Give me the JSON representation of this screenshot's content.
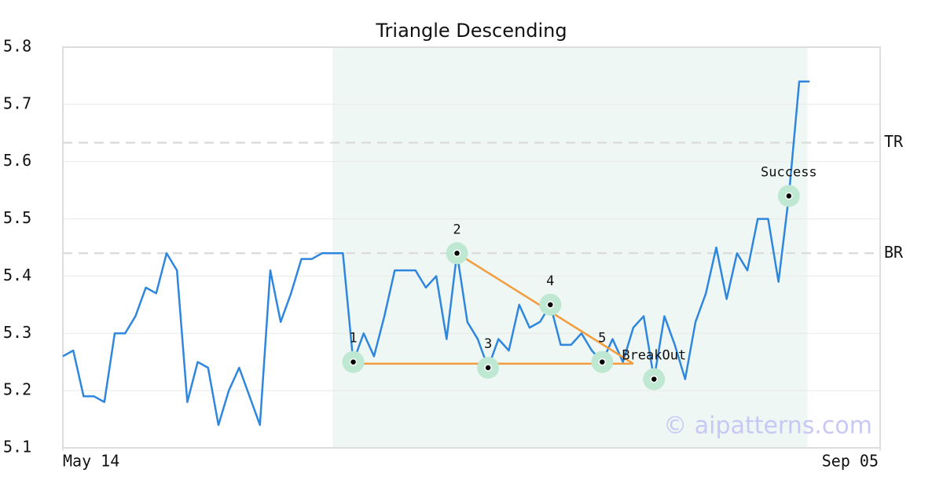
{
  "chart_data": {
    "type": "line",
    "title": "Triangle Descending",
    "color": "#2e86de",
    "x": [
      0,
      1,
      2,
      3,
      4,
      5,
      6,
      7,
      8,
      9,
      10,
      11,
      12,
      13,
      14,
      15,
      16,
      17,
      18,
      19,
      20,
      21,
      22,
      23,
      24,
      25,
      26,
      27,
      28,
      29,
      30,
      31,
      32,
      33,
      34,
      35,
      36,
      37,
      38,
      39,
      40,
      41,
      42,
      43,
      44,
      45,
      46,
      47,
      48,
      49,
      50,
      51,
      52,
      53,
      54,
      55,
      56,
      57,
      58,
      59,
      60,
      61,
      62,
      63,
      64,
      65,
      66,
      67,
      68,
      69,
      70,
      71,
      72
    ],
    "values": [
      5.26,
      5.27,
      5.19,
      5.19,
      5.18,
      5.3,
      5.3,
      5.33,
      5.38,
      5.37,
      5.44,
      5.41,
      5.18,
      5.25,
      5.24,
      5.14,
      5.2,
      5.24,
      5.19,
      5.14,
      5.41,
      5.32,
      5.37,
      5.43,
      5.43,
      5.44,
      5.44,
      5.44,
      5.25,
      5.3,
      5.26,
      5.33,
      5.41,
      5.41,
      5.41,
      5.38,
      5.4,
      5.29,
      5.44,
      5.32,
      5.29,
      5.24,
      5.29,
      5.27,
      5.35,
      5.31,
      5.32,
      5.35,
      5.28,
      5.28,
      5.3,
      5.27,
      5.25,
      5.29,
      5.25,
      5.31,
      5.33,
      5.22,
      5.33,
      5.28,
      5.22,
      5.32,
      5.37,
      5.45,
      5.36,
      5.44,
      5.41,
      5.5,
      5.5,
      5.39,
      5.54,
      5.74,
      5.74
    ],
    "xlim": [
      0,
      78.8
    ],
    "xticks": [
      {
        "value": 0,
        "label": "May 14"
      },
      {
        "value": 78.8,
        "label": "Sep 05"
      }
    ],
    "ylim": [
      5.1,
      5.8
    ],
    "yticks": [
      5.1,
      5.2,
      5.3,
      5.4,
      5.5,
      5.6,
      5.7,
      5.8
    ],
    "grid": true,
    "highlight": [
      26,
      71.8
    ],
    "reference_lines": [
      {
        "label": "TR",
        "value": 5.633
      },
      {
        "label": "BR",
        "value": 5.44
      }
    ],
    "trendlines": [
      {
        "color": "#f39c3d",
        "x": [
          28,
          55
        ],
        "y": [
          5.247,
          5.247
        ]
      },
      {
        "color": "#f39c3d",
        "x": [
          38,
          55
        ],
        "y": [
          5.44,
          5.247
        ]
      }
    ],
    "annotations": [
      {
        "label": "1",
        "x": 28,
        "y": 5.25
      },
      {
        "label": "2",
        "x": 38,
        "y": 5.44
      },
      {
        "label": "3",
        "x": 41,
        "y": 5.24
      },
      {
        "label": "4",
        "x": 47,
        "y": 5.35
      },
      {
        "label": "5",
        "x": 52,
        "y": 5.25
      },
      {
        "label": "BreakOut",
        "x": 57,
        "y": 5.22
      },
      {
        "label": "Success",
        "x": 70,
        "y": 5.54
      }
    ],
    "watermark": "© aipatterns.com"
  }
}
